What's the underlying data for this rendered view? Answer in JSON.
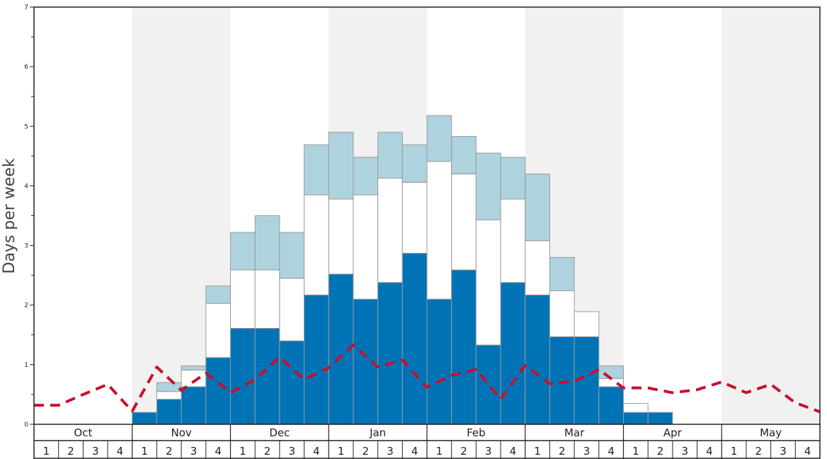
{
  "chart_data": {
    "type": "bar",
    "ylabel": "Days per week",
    "ylim": [
      0,
      7
    ],
    "yticks": [
      0,
      1,
      2,
      3,
      4,
      5,
      6,
      7
    ],
    "months": [
      "Oct",
      "Nov",
      "Dec",
      "Jan",
      "Feb",
      "Mar",
      "Apr",
      "May"
    ],
    "week_labels": [
      "1",
      "2",
      "3",
      "4"
    ],
    "grid": false,
    "legend": "none",
    "colors": {
      "base": "#0073b6",
      "middle": "#ffffff",
      "top": "#aed3df",
      "line": "#c8102e",
      "shade": "#f1f1f1",
      "bar_edge": "#9a9a9a"
    },
    "series": [
      {
        "values": [
          0,
          0,
          0,
          0,
          0.2,
          0.42,
          0.63,
          1.12,
          1.61,
          1.61,
          1.4,
          2.17,
          2.52,
          2.1,
          2.38,
          2.87,
          2.1,
          2.59,
          1.33,
          2.38,
          2.17,
          1.47,
          1.47,
          0.63,
          0.2,
          0.2,
          0,
          0,
          0,
          0,
          0,
          0
        ]
      },
      {
        "values": [
          0,
          0,
          0,
          0,
          0,
          0.13,
          0.28,
          0.91,
          0.98,
          0.98,
          1.05,
          1.68,
          1.26,
          1.75,
          1.75,
          1.19,
          2.31,
          1.61,
          2.1,
          1.4,
          0.91,
          0.77,
          0.42,
          0.14,
          0.15,
          0,
          0,
          0,
          0,
          0,
          0,
          0
        ]
      },
      {
        "values": [
          0,
          0,
          0,
          0,
          0,
          0.15,
          0.07,
          0.29,
          0.63,
          0.91,
          0.77,
          0.84,
          1.12,
          0.63,
          0.77,
          0.63,
          0.77,
          0.63,
          1.12,
          0.7,
          1.12,
          0.56,
          0,
          0.21,
          0,
          0,
          0,
          0,
          0,
          0,
          0,
          0
        ]
      },
      {
        "values": [
          0.32,
          0.5,
          0.67,
          0.22,
          0.96,
          0.57,
          0.86,
          0.53,
          0.75,
          1.13,
          0.75,
          0.95,
          1.33,
          0.96,
          1.08,
          0.62,
          0.82,
          0.92,
          0.42,
          0.99,
          0.68,
          0.72,
          0.92,
          0.61,
          0.61,
          0.53,
          0.58,
          0.71,
          0.53,
          0.67,
          0.36,
          0.21
        ]
      }
    ]
  }
}
